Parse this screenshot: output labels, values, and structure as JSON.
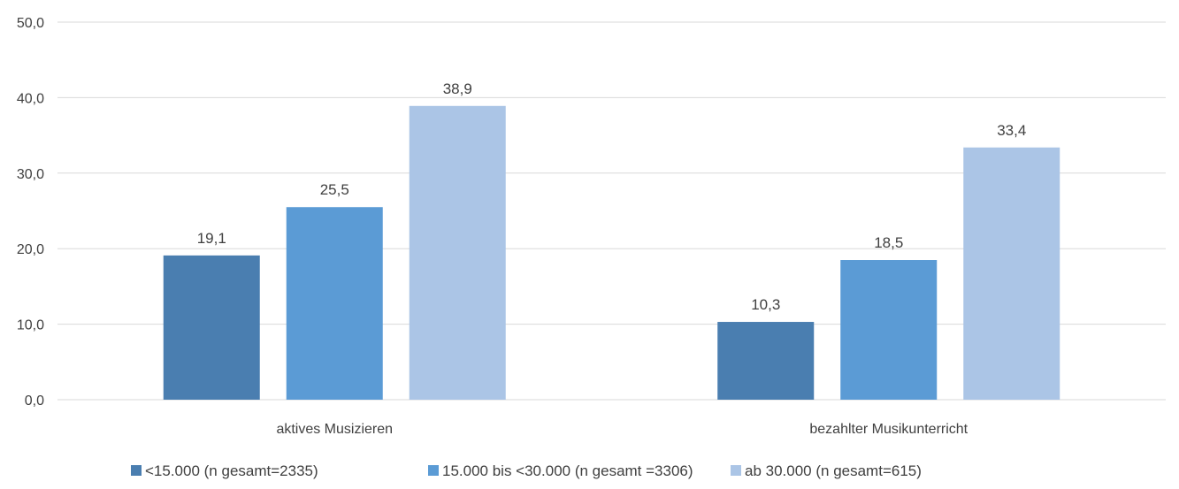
{
  "chart_data": {
    "type": "bar",
    "categories": [
      "aktives Musizieren",
      "bezahlter Musikunterricht"
    ],
    "series": [
      {
        "name": "<15.000 (n gesamt=2335)",
        "values": [
          19.1,
          10.3
        ],
        "color": "#4a7eb0"
      },
      {
        "name": "15.000 bis <30.000 (n gesamt =3306)",
        "values": [
          25.5,
          18.5
        ],
        "color": "#5b9bd5"
      },
      {
        "name": "ab 30.000 (n gesamt=615)",
        "values": [
          38.9,
          33.4
        ],
        "color": "#abc5e6"
      }
    ],
    "value_labels": [
      [
        "19,1",
        "10,3"
      ],
      [
        "25,5",
        "18,5"
      ],
      [
        "38,9",
        "33,4"
      ]
    ],
    "yticks": [
      0,
      10,
      20,
      30,
      40,
      50
    ],
    "ytick_labels": [
      "0,0",
      "10,0",
      "20,0",
      "30,0",
      "40,0",
      "50,0"
    ],
    "ylim": [
      0,
      50
    ],
    "grid": true,
    "legend_position": "bottom",
    "gridline_color": "#d9d9d9",
    "text_color": "#404040"
  }
}
